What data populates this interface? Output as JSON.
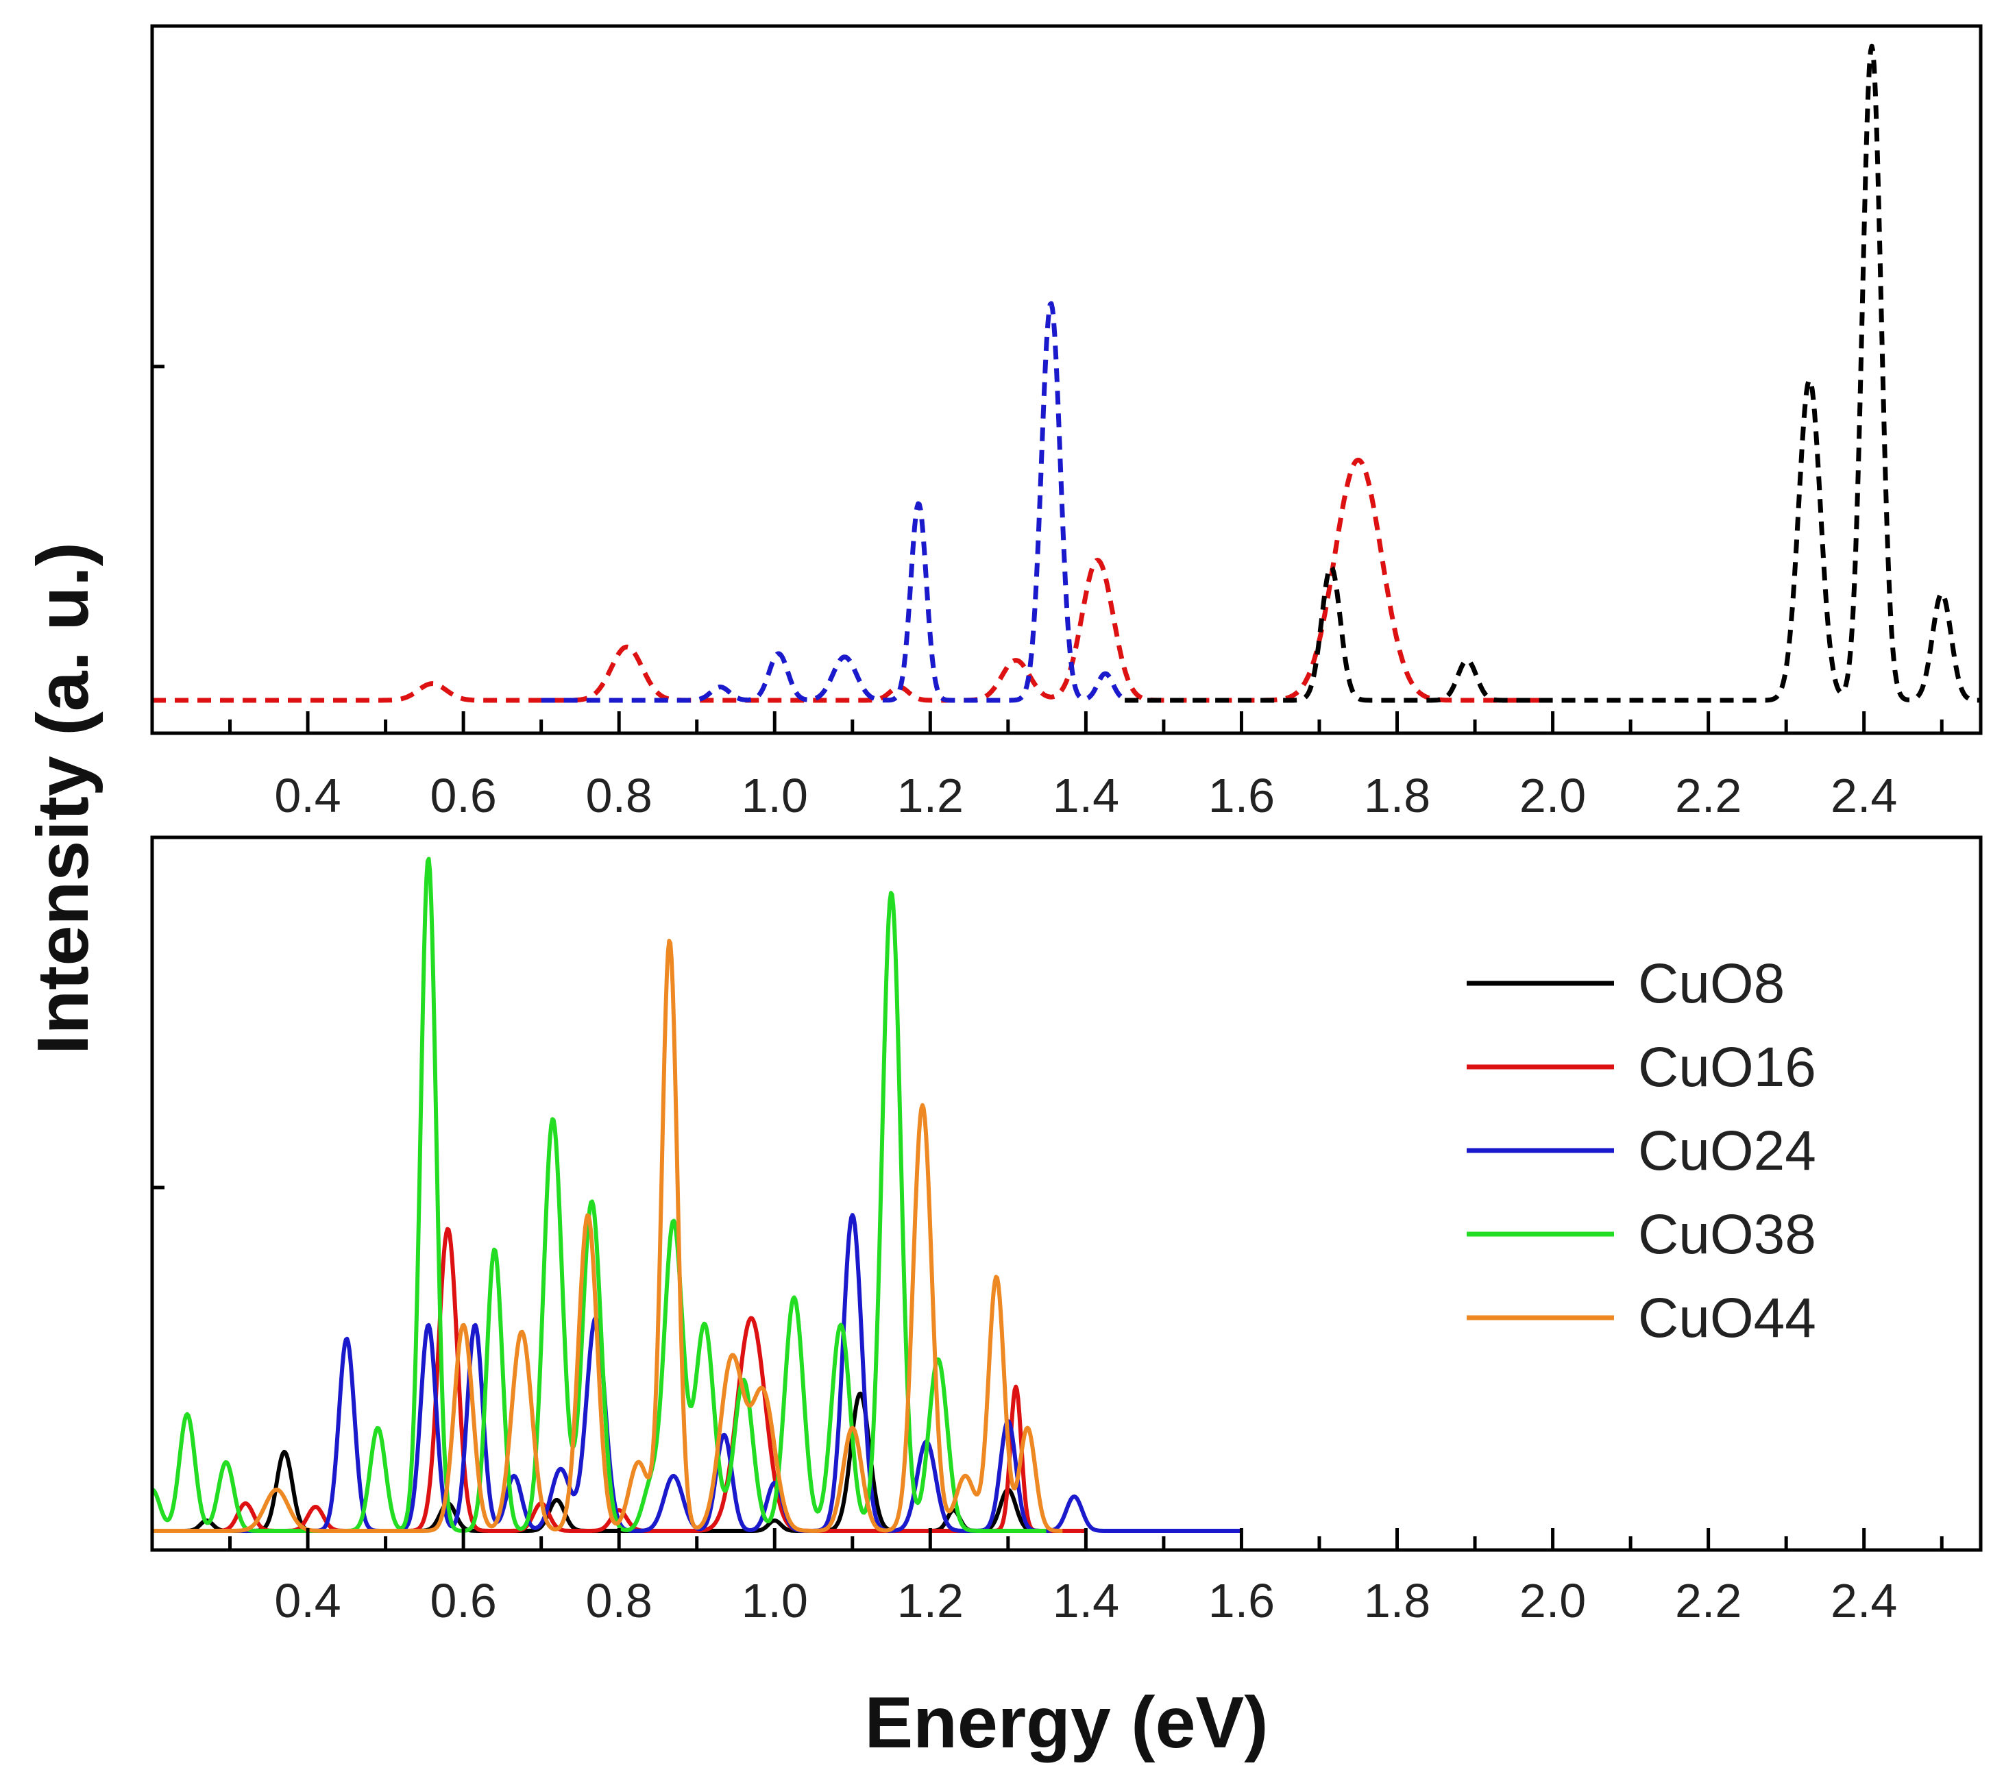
{
  "chart_data": {
    "type": "line",
    "ylabel": "Intensity (a. u.)",
    "xlabel": "Energy (eV)",
    "xlim": [
      0.2,
      2.55
    ],
    "xticks": [
      0.3,
      0.4,
      0.5,
      0.6,
      0.7,
      0.8,
      0.9,
      1.0,
      1.1,
      1.2,
      1.3,
      1.4,
      1.5,
      1.6,
      1.7,
      1.8,
      1.9,
      2.0,
      2.1,
      2.2,
      2.3,
      2.4,
      2.5
    ],
    "xtick_labels": [
      "0.4",
      "0.6",
      "0.8",
      "1.0",
      "1.2",
      "1.4",
      "1.6",
      "1.8",
      "2.0",
      "2.2",
      "2.4"
    ],
    "legend": {
      "position": "right",
      "entries": [
        {
          "label": "CuO8",
          "color": "#000000"
        },
        {
          "label": "CuO16",
          "color": "#dd1111"
        },
        {
          "label": "CuO24",
          "color": "#1a1acc"
        },
        {
          "label": "CuO38",
          "color": "#22dd22"
        },
        {
          "label": "CuO44",
          "color": "#ee8822"
        }
      ]
    },
    "panels": [
      {
        "name": "top",
        "ylim": [
          0,
          1.0
        ],
        "line_style": "dashed",
        "series": [
          {
            "name": "CuO16",
            "color": "#dd1111",
            "x_range": [
              0.2,
              2.0
            ],
            "peaks": [
              [
                0.56,
                0.025,
                0.018
              ],
              [
                0.81,
                0.08,
                0.02
              ],
              [
                1.16,
                0.02,
                0.012
              ],
              [
                1.31,
                0.06,
                0.018
              ],
              [
                1.415,
                0.21,
                0.02
              ],
              [
                1.75,
                0.36,
                0.03
              ]
            ]
          },
          {
            "name": "CuO24",
            "color": "#1a1acc",
            "x_range": [
              0.7,
              1.45
            ],
            "peaks": [
              [
                0.93,
                0.02,
                0.012
              ],
              [
                1.005,
                0.07,
                0.012
              ],
              [
                1.09,
                0.065,
                0.015
              ],
              [
                1.185,
                0.295,
                0.01
              ],
              [
                1.355,
                0.595,
                0.012
              ],
              [
                1.425,
                0.04,
                0.01
              ]
            ]
          },
          {
            "name": "CuO8",
            "color": "#000000",
            "x_range": [
              1.45,
              2.55
            ],
            "peaks": [
              [
                1.715,
                0.2,
                0.012
              ],
              [
                1.89,
                0.06,
                0.012
              ],
              [
                2.33,
                0.48,
                0.014
              ],
              [
                2.41,
                0.98,
                0.012
              ],
              [
                2.5,
                0.16,
                0.012
              ]
            ]
          }
        ]
      },
      {
        "name": "bottom",
        "ylim": [
          0,
          1.0
        ],
        "line_style": "solid",
        "series": [
          {
            "name": "CuO8",
            "color": "#000000",
            "x_range": [
              0.2,
              1.4
            ],
            "peaks": [
              [
                0.27,
                0.015,
                0.008
              ],
              [
                0.37,
                0.115,
                0.01
              ],
              [
                0.58,
                0.04,
                0.01
              ],
              [
                0.72,
                0.045,
                0.01
              ],
              [
                1.0,
                0.015,
                0.008
              ],
              [
                1.11,
                0.2,
                0.012
              ],
              [
                1.23,
                0.03,
                0.008
              ],
              [
                1.3,
                0.06,
                0.01
              ]
            ]
          },
          {
            "name": "CuO16",
            "color": "#dd1111",
            "x_range": [
              0.2,
              1.4
            ],
            "peaks": [
              [
                0.32,
                0.04,
                0.01
              ],
              [
                0.41,
                0.035,
                0.01
              ],
              [
                0.58,
                0.44,
                0.012
              ],
              [
                0.7,
                0.04,
                0.01
              ],
              [
                0.8,
                0.03,
                0.01
              ],
              [
                0.97,
                0.31,
                0.018
              ],
              [
                1.31,
                0.21,
                0.007
              ]
            ]
          },
          {
            "name": "CuO24",
            "color": "#1a1acc",
            "x_range": [
              0.2,
              1.6
            ],
            "peaks": [
              [
                0.45,
                0.28,
                0.01
              ],
              [
                0.555,
                0.3,
                0.01
              ],
              [
                0.615,
                0.3,
                0.01
              ],
              [
                0.665,
                0.08,
                0.01
              ],
              [
                0.725,
                0.09,
                0.012
              ],
              [
                0.77,
                0.31,
                0.012
              ],
              [
                0.87,
                0.08,
                0.012
              ],
              [
                0.935,
                0.14,
                0.01
              ],
              [
                1.0,
                0.07,
                0.01
              ],
              [
                1.1,
                0.46,
                0.012
              ],
              [
                1.195,
                0.13,
                0.012
              ],
              [
                1.3,
                0.16,
                0.01
              ],
              [
                1.385,
                0.05,
                0.01
              ]
            ]
          },
          {
            "name": "CuO38",
            "color": "#22dd22",
            "x_range": [
              0.2,
              1.35
            ],
            "peaks": [
              [
                0.2,
                0.06,
                0.01
              ],
              [
                0.245,
                0.17,
                0.01
              ],
              [
                0.295,
                0.1,
                0.01
              ],
              [
                0.49,
                0.15,
                0.01
              ],
              [
                0.555,
                0.98,
                0.01
              ],
              [
                0.64,
                0.41,
                0.01
              ],
              [
                0.715,
                0.6,
                0.012
              ],
              [
                0.765,
                0.48,
                0.012
              ],
              [
                0.84,
                0.06,
                0.01
              ],
              [
                0.87,
                0.45,
                0.012
              ],
              [
                0.91,
                0.3,
                0.012
              ],
              [
                0.96,
                0.22,
                0.012
              ],
              [
                1.025,
                0.34,
                0.012
              ],
              [
                1.085,
                0.3,
                0.012
              ],
              [
                1.15,
                0.93,
                0.012
              ],
              [
                1.21,
                0.25,
                0.012
              ]
            ]
          },
          {
            "name": "CuO44",
            "color": "#ee8822",
            "x_range": [
              0.2,
              1.37
            ],
            "peaks": [
              [
                0.36,
                0.06,
                0.015
              ],
              [
                0.6,
                0.3,
                0.012
              ],
              [
                0.675,
                0.29,
                0.013
              ],
              [
                0.76,
                0.46,
                0.012
              ],
              [
                0.825,
                0.1,
                0.012
              ],
              [
                0.865,
                0.86,
                0.01
              ],
              [
                0.945,
                0.25,
                0.015
              ],
              [
                0.985,
                0.2,
                0.015
              ],
              [
                1.1,
                0.15,
                0.012
              ],
              [
                1.19,
                0.62,
                0.012
              ],
              [
                1.245,
                0.08,
                0.012
              ],
              [
                1.285,
                0.37,
                0.01
              ],
              [
                1.325,
                0.15,
                0.01
              ]
            ]
          }
        ]
      }
    ]
  }
}
